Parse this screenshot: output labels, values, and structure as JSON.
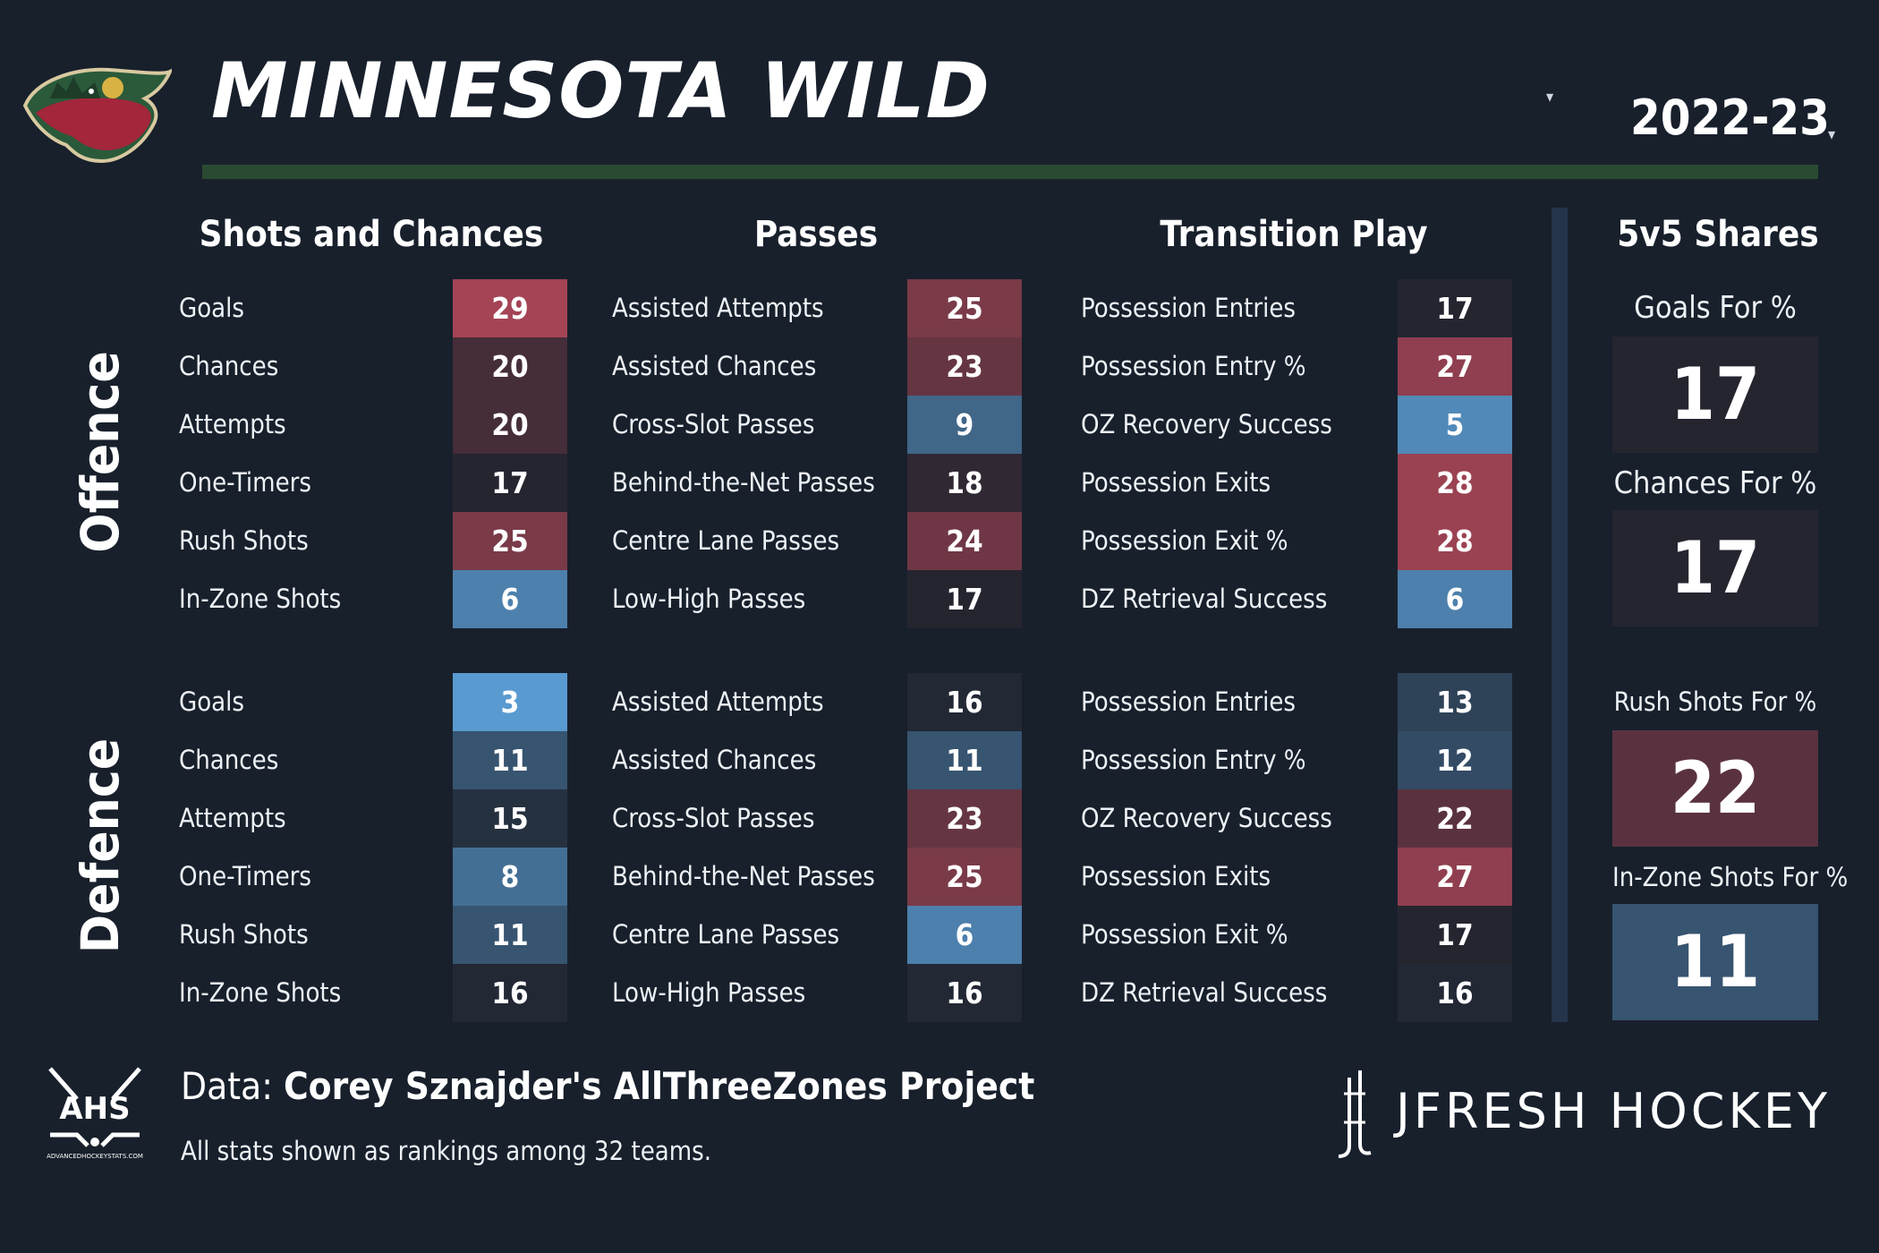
{
  "header": {
    "team": "MINNESOTA WILD",
    "season": "2022-23",
    "caret": "▾"
  },
  "columns": {
    "shots": "Shots and Chances",
    "passes": "Passes",
    "transition": "Transition Play",
    "shares": "5v5 Shares"
  },
  "sections": {
    "offence": "Offence",
    "defence": "Defence"
  },
  "offence": {
    "shots": [
      {
        "label": "Goals",
        "rank": "29"
      },
      {
        "label": "Chances",
        "rank": "20"
      },
      {
        "label": "Attempts",
        "rank": "20"
      },
      {
        "label": "One-Timers",
        "rank": "17"
      },
      {
        "label": "Rush Shots",
        "rank": "25"
      },
      {
        "label": "In-Zone Shots",
        "rank": "6"
      }
    ],
    "passes": [
      {
        "label": "Assisted Attempts",
        "rank": "25"
      },
      {
        "label": "Assisted Chances",
        "rank": "23"
      },
      {
        "label": "Cross-Slot Passes",
        "rank": "9"
      },
      {
        "label": "Behind-the-Net Passes",
        "rank": "18"
      },
      {
        "label": "Centre Lane Passes",
        "rank": "24"
      },
      {
        "label": "Low-High Passes",
        "rank": "17"
      }
    ],
    "transition": [
      {
        "label": "Possession Entries",
        "rank": "17"
      },
      {
        "label": "Possession Entry %",
        "rank": "27"
      },
      {
        "label": "OZ Recovery Success",
        "rank": "5"
      },
      {
        "label": "Possession Exits",
        "rank": "28"
      },
      {
        "label": "Possession Exit %",
        "rank": "28"
      },
      {
        "label": "DZ Retrieval Success",
        "rank": "6"
      }
    ]
  },
  "defence": {
    "shots": [
      {
        "label": "Goals",
        "rank": "3"
      },
      {
        "label": "Chances",
        "rank": "11"
      },
      {
        "label": "Attempts",
        "rank": "15"
      },
      {
        "label": "One-Timers",
        "rank": "8"
      },
      {
        "label": "Rush Shots",
        "rank": "11"
      },
      {
        "label": "In-Zone Shots",
        "rank": "16"
      }
    ],
    "passes": [
      {
        "label": "Assisted Attempts",
        "rank": "16"
      },
      {
        "label": "Assisted Chances",
        "rank": "11"
      },
      {
        "label": "Cross-Slot Passes",
        "rank": "23"
      },
      {
        "label": "Behind-the-Net Passes",
        "rank": "25"
      },
      {
        "label": "Centre Lane Passes",
        "rank": "6"
      },
      {
        "label": "Low-High Passes",
        "rank": "16"
      }
    ],
    "transition": [
      {
        "label": "Possession Entries",
        "rank": "13"
      },
      {
        "label": "Possession Entry %",
        "rank": "12"
      },
      {
        "label": "OZ Recovery Success",
        "rank": "22"
      },
      {
        "label": "Possession Exits",
        "rank": "27"
      },
      {
        "label": "Possession Exit %",
        "rank": "17"
      },
      {
        "label": "DZ Retrieval Success",
        "rank": "16"
      }
    ]
  },
  "shares": [
    {
      "label": "Goals For %",
      "rank": "17"
    },
    {
      "label": "Chances For %",
      "rank": "17"
    },
    {
      "label": "Rush Shots For %",
      "rank": "22"
    },
    {
      "label": "In-Zone Shots For %",
      "rank": "11"
    }
  ],
  "footer": {
    "source_prefix": "Data: ",
    "source_name": "Corey Sznajder's AllThreeZones Project",
    "note": "All stats shown as rankings among 32 teams.",
    "brand": "JFRESH HOCKEY",
    "ahs_text": "AHS",
    "ahs_url": "ADVANCEDHOCKEYSTATS.COM"
  },
  "colors": {
    "background": "#18202c",
    "neutral": "#202530",
    "good_blue": "#5ea8e6",
    "bad_red": "#c24a5c",
    "wild_green": "#2a4a31"
  }
}
